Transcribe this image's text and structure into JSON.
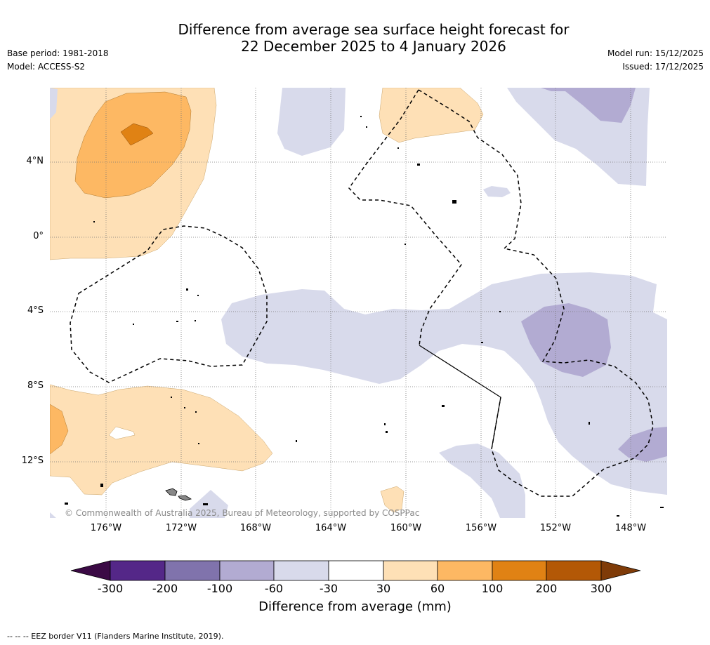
{
  "title": {
    "line1": "Difference from average sea surface height forecast for",
    "line2": "22 December 2025 to 4 January 2026"
  },
  "meta_left": {
    "base_period": "Base period: 1981-2018",
    "model": "Model: ACCESS-S2"
  },
  "meta_right": {
    "model_run": "Model run: 15/12/2025",
    "issued": "Issued: 17/12/2025"
  },
  "map": {
    "lat_labels": [
      "4°N",
      "0°",
      "4°S",
      "8°S",
      "12°S"
    ],
    "lon_labels": [
      "176°W",
      "172°W",
      "168°W",
      "164°W",
      "160°W",
      "156°W",
      "152°W",
      "148°W"
    ],
    "copyright": "© Commonwealth of Australia 2025, Bureau of Meteorology, supported by COSPPac"
  },
  "colorbar": {
    "labels": [
      "-300",
      "-200",
      "-100",
      "-60",
      "-30",
      "30",
      "60",
      "100",
      "200",
      "300"
    ],
    "colors": [
      "#3b0a45",
      "#542788",
      "#8073ac",
      "#b2abd2",
      "#d8daeb",
      "#ffffff",
      "#fee0b6",
      "#fdb863",
      "#e08214",
      "#b35806",
      "#7f3b08"
    ],
    "title": "Difference from average (mm)"
  },
  "footer": "--  --  -- EEZ border V11 (Flanders Marine Institute, 2019)."
}
